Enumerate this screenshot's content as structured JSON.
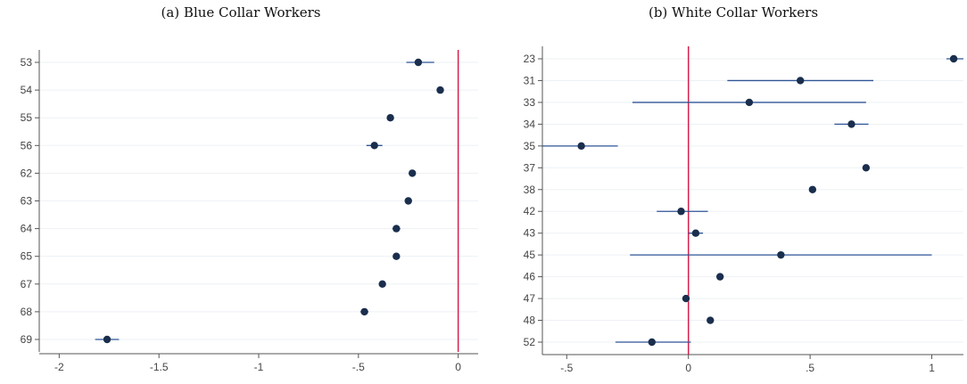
{
  "chart_data": [
    {
      "type": "scatter",
      "subtype": "coefficient-plot",
      "title": "(a) Blue Collar Workers",
      "categories": [
        "53",
        "54",
        "55",
        "56",
        "62",
        "63",
        "64",
        "65",
        "67",
        "68",
        "69"
      ],
      "estimates": [
        -0.2,
        -0.09,
        -0.34,
        -0.42,
        -0.23,
        -0.25,
        -0.31,
        -0.31,
        -0.38,
        -0.47,
        -1.76
      ],
      "ci_low": [
        -0.26,
        -0.1,
        -0.35,
        -0.46,
        -0.24,
        -0.26,
        -0.33,
        -0.32,
        -0.39,
        -0.49,
        -1.82
      ],
      "ci_high": [
        -0.12,
        -0.08,
        -0.33,
        -0.38,
        -0.22,
        -0.24,
        -0.29,
        -0.3,
        -0.37,
        -0.45,
        -1.7
      ],
      "xlim": [
        -2.1,
        0.1
      ],
      "xticks": [
        -2,
        -1.5,
        -1,
        -0.5,
        0
      ],
      "xtick_labels": [
        "-2",
        "-1.5",
        "-1",
        "-.5",
        "0"
      ],
      "reference_line": 0,
      "colors": {
        "point": "#1a2e4d",
        "ci": "#2f5597",
        "reference": "#d6204b",
        "axis": "#555555",
        "grid": "#eef1f5"
      }
    },
    {
      "type": "scatter",
      "subtype": "coefficient-plot",
      "title": "(b) White Collar Workers",
      "categories": [
        "23",
        "31",
        "33",
        "34",
        "35",
        "37",
        "38",
        "42",
        "43",
        "45",
        "46",
        "47",
        "48",
        "52"
      ],
      "estimates": [
        1.09,
        0.46,
        0.25,
        0.67,
        -0.44,
        0.73,
        0.51,
        -0.03,
        0.03,
        0.38,
        0.13,
        -0.01,
        0.09,
        -0.15
      ],
      "ci_low": [
        1.06,
        0.16,
        -0.23,
        0.6,
        -0.6,
        0.72,
        0.5,
        -0.13,
        0.0,
        -0.24,
        0.12,
        -0.02,
        0.08,
        -0.3
      ],
      "ci_high": [
        1.13,
        0.76,
        0.73,
        0.74,
        -0.29,
        0.74,
        0.52,
        0.08,
        0.06,
        1.0,
        0.14,
        0.0,
        0.1,
        0.01
      ],
      "xlim": [
        -0.6,
        1.13
      ],
      "xticks": [
        -0.5,
        0,
        0.5,
        1
      ],
      "xtick_labels": [
        "-.5",
        "0",
        ".5",
        "1"
      ],
      "reference_line": 0,
      "colors": {
        "point": "#1a2e4d",
        "ci": "#2f5597",
        "reference": "#d6204b",
        "axis": "#555555",
        "grid": "#eef1f5"
      }
    }
  ]
}
